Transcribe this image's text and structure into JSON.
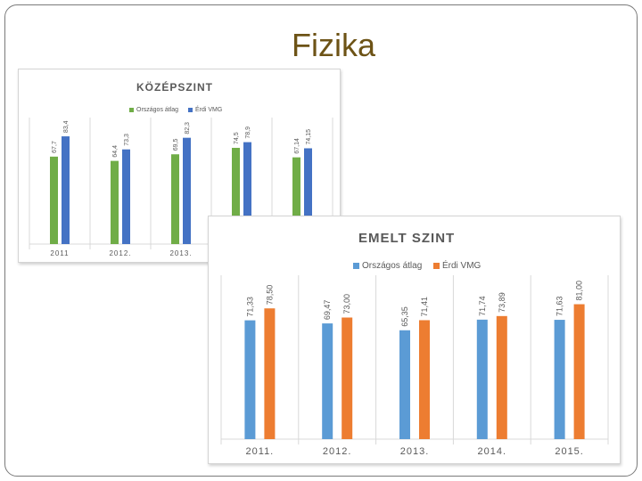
{
  "slide": {
    "title": "Fizika"
  },
  "chart_data": [
    {
      "type": "bar",
      "title": "KÖZÉPSZINT",
      "categories": [
        "2011",
        "2012.",
        "2013.",
        "2014.",
        "2015."
      ],
      "series": [
        {
          "name": "Országos átlag",
          "color": "#70ad47",
          "values": [
            67.7,
            64.4,
            69.5,
            74.5,
            67.14
          ],
          "labels": [
            "67,7",
            "64,4",
            "69,5",
            "74,5",
            "67,14"
          ]
        },
        {
          "name": "Érdi VMG",
          "color": "#4472c4",
          "values": [
            83.4,
            73.3,
            82.3,
            78.9,
            74.15
          ],
          "labels": [
            "83,4",
            "73,3",
            "82,3",
            "78,9",
            "74,15"
          ]
        }
      ],
      "ylim": [
        0,
        100
      ],
      "legend": "top",
      "grid": false
    },
    {
      "type": "bar",
      "title": "EMELT SZINT",
      "categories": [
        "2011.",
        "2012.",
        "2013.",
        "2014.",
        "2015."
      ],
      "series": [
        {
          "name": "Országos átlag",
          "color": "#5b9bd5",
          "values": [
            71.33,
            69.47,
            65.35,
            71.74,
            71.63
          ],
          "labels": [
            "71,33",
            "69,47",
            "65,35",
            "71,74",
            "71,63"
          ]
        },
        {
          "name": "Érdi VMG",
          "color": "#ed7d31",
          "values": [
            78.5,
            73.0,
            71.41,
            73.89,
            81.0
          ],
          "labels": [
            "78,50",
            "73,00",
            "71,41",
            "73,89",
            "81,00"
          ]
        }
      ],
      "ylim": [
        0,
        100
      ],
      "legend": "top",
      "grid": false
    }
  ]
}
